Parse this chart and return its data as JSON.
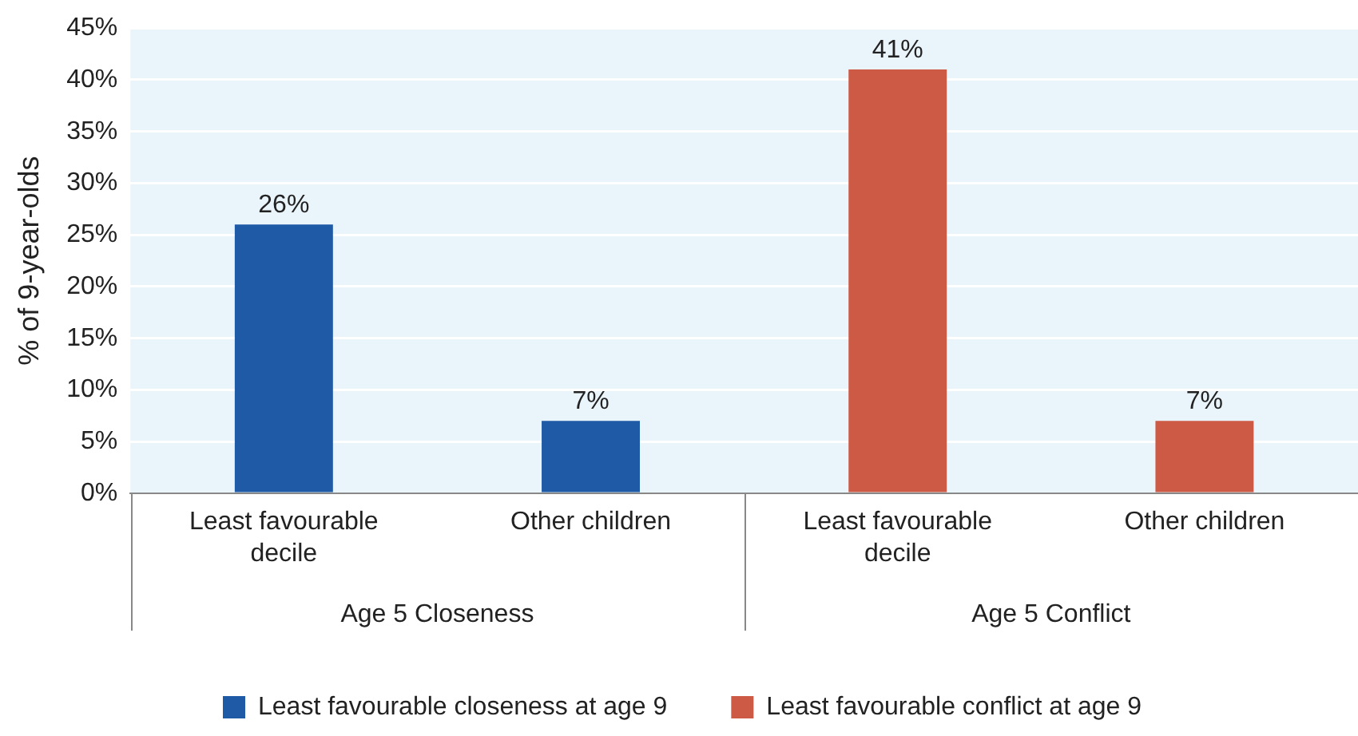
{
  "chart_data": {
    "type": "bar",
    "ylabel": "% of 9-year-olds",
    "categories": [
      "Least favourable decile",
      "Other children",
      "Least favourable decile",
      "Other children"
    ],
    "series": [
      {
        "name": "Least favourable closeness at age 9",
        "color": "#1f5aa6",
        "values": [
          26,
          7,
          null,
          null
        ],
        "value_labels": [
          "26%",
          "7%",
          null,
          null
        ]
      },
      {
        "name": "Least favourable conflict at age 9",
        "color": "#cd5a45",
        "values": [
          null,
          null,
          41,
          7
        ],
        "value_labels": [
          null,
          null,
          "41%",
          "7%"
        ]
      }
    ],
    "ylim": [
      0,
      45
    ],
    "yticks": [
      {
        "value": 0,
        "label": "0%"
      },
      {
        "value": 5,
        "label": "5%"
      },
      {
        "value": 10,
        "label": "10%"
      },
      {
        "value": 15,
        "label": "15%"
      },
      {
        "value": 20,
        "label": "20%"
      },
      {
        "value": 25,
        "label": "25%"
      },
      {
        "value": 30,
        "label": "30%"
      },
      {
        "value": 35,
        "label": "35%"
      },
      {
        "value": 40,
        "label": "40%"
      },
      {
        "value": 45,
        "label": "45%"
      }
    ],
    "grid": "y",
    "legend": "bottom",
    "annotations": [
      "Age 5 Closeness",
      "Age 5 Conflict"
    ]
  }
}
